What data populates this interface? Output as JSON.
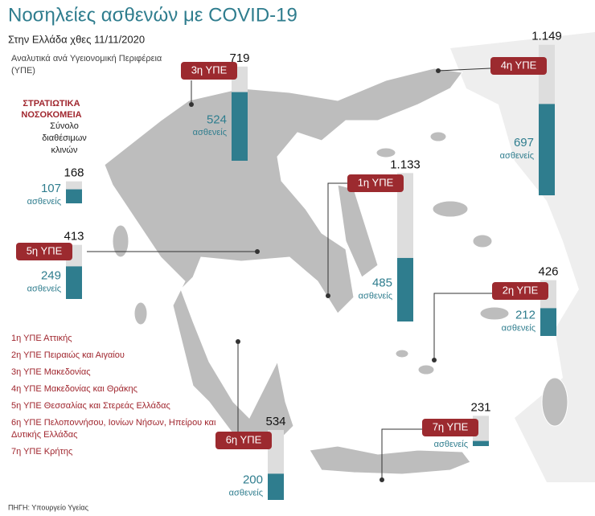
{
  "chart_data": {
    "type": "bar",
    "title": "Νοσηλείες ασθενών με COVID-19",
    "subtitle": "Στην Ελλάδα χθες 11/11/2020",
    "note": "Αναλυτικά ανά Υγειονομική Περιφέρεια (ΥΠΕ)",
    "categories": [
      "3η ΥΠΕ",
      "4η ΥΠΕ",
      "1η ΥΠΕ",
      "5η ΥΠΕ",
      "2η ΥΠΕ",
      "6η ΥΠΕ",
      "7η ΥΠΕ",
      "ΣΤΡΑΤΙΩΤΙΚΑ ΝΟΣΟΚΟΜΕΙΑ"
    ],
    "series": [
      {
        "name": "Σύνολο διαθέσιμων κλινών",
        "color": "#dddddd",
        "values": [
          719,
          1149,
          1133,
          413,
          426,
          534,
          231,
          168
        ],
        "value_labels": [
          "719",
          "1.149",
          "1.133",
          "413",
          "426",
          "534",
          "231",
          "168"
        ]
      },
      {
        "name": "ασθενείς",
        "color": "#2f7d8e",
        "values": [
          524,
          697,
          485,
          249,
          212,
          200,
          39,
          107
        ]
      }
    ],
    "legend_items": [
      "1η ΥΠΕ Αττικής",
      "2η ΥΠΕ Πειραιώς και Αιγαίου",
      "3η ΥΠΕ Μακεδονίας",
      "4η ΥΠΕ Μακεδονίας και Θράκης",
      "5η ΥΠΕ Θεσσαλίας και Στερεάς Ελλάδας",
      "6η ΥΠΕ Πελοποννήσου, Ιονίων Νήσων, Ηπείρου και Δυτικής Ελλάδας",
      "7η ΥΠΕ Κρήτης"
    ],
    "source": "ΠΗΓΗ: Υπουργείο Υγείας"
  }
}
